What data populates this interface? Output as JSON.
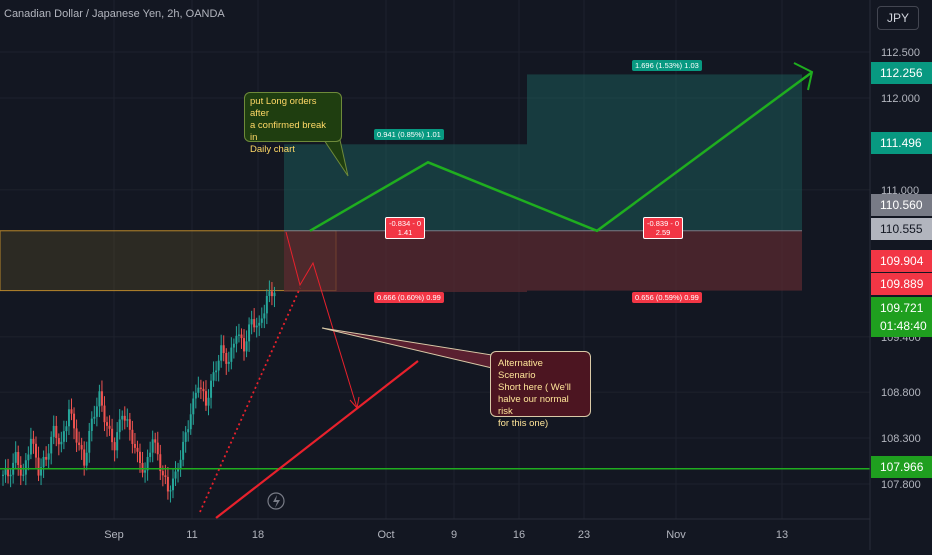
{
  "header": {
    "title": "Canadian Dollar / Japanese Yen, 2h, OANDA",
    "currency": "JPY"
  },
  "colors": {
    "bg": "#131722",
    "up": "#26a69a",
    "down": "#ef5350",
    "green_line": "#1fad1f",
    "red_line": "#e8212c",
    "profit_zone": "#1c5a58",
    "loss_zone": "#5a2a30",
    "grid": "#1e222d"
  },
  "chart_data": {
    "type": "candlestick",
    "symbol": "Canadian Dollar / Japanese Yen, 2h, OANDA",
    "x_ticks": [
      "Sep",
      "11",
      "18",
      "Oct",
      "9",
      "16",
      "23",
      "Nov",
      "13"
    ],
    "y_ticks": [
      "112.500",
      "112.000",
      "111.000",
      "109.400",
      "108.800",
      "108.300",
      "107.800"
    ],
    "ylim": [
      107.58,
      112.78
    ],
    "last_price": "109.721",
    "countdown": "01:48:40",
    "price_labels": [
      {
        "value": "112.256",
        "color": "#089981"
      },
      {
        "value": "111.496",
        "color": "#089981"
      },
      {
        "value": "110.560",
        "color": "#787b86"
      },
      {
        "value": "110.555",
        "color": "#b2b5be"
      },
      {
        "value": "109.904",
        "color": "#f23645"
      },
      {
        "value": "109.889",
        "color": "#f23645"
      },
      {
        "value": "109.721",
        "color": "#1f9f1f"
      },
      {
        "value": "107.966",
        "color": "#1f9f1f"
      }
    ],
    "horizontal_line": 107.966,
    "series_description": "Candles rising from ~107.7 to ~109.9 between early Sep and 18 Sep",
    "candles_close_path": [
      107.9,
      108.1,
      107.85,
      108.3,
      107.95,
      108.1,
      108.4,
      108.2,
      108.6,
      108.3,
      108.05,
      108.5,
      108.75,
      108.4,
      108.2,
      108.6,
      108.4,
      108.1,
      107.9,
      108.3,
      108.0,
      107.75,
      107.9,
      108.2,
      108.55,
      108.9,
      108.7,
      109.0,
      109.25,
      109.1,
      109.45,
      109.3,
      109.6,
      109.5,
      109.8,
      109.9
    ],
    "positions": [
      {
        "entry": 110.555,
        "target": 111.496,
        "stop": 109.889,
        "top_label": "0.941 (0.85%) 1.01",
        "mid_label": "-0.834 - 0\n1.41",
        "bottom_label": "0.666 (0.60%) 0.99"
      },
      {
        "entry": 110.56,
        "target": 112.256,
        "stop": 109.904,
        "top_label": "1.696 (1.53%) 1.03",
        "mid_label": "-0.839 - 0\n2.59",
        "bottom_label": "0.656 (0.59%) 0.99"
      }
    ],
    "annotations": [
      {
        "text": "put Long orders after\na confirmed break in\nDaily chart"
      },
      {
        "text": "Alternative Scenario\nShort here ( We'll\nhalve our normal risk\nfor this one)"
      }
    ]
  }
}
